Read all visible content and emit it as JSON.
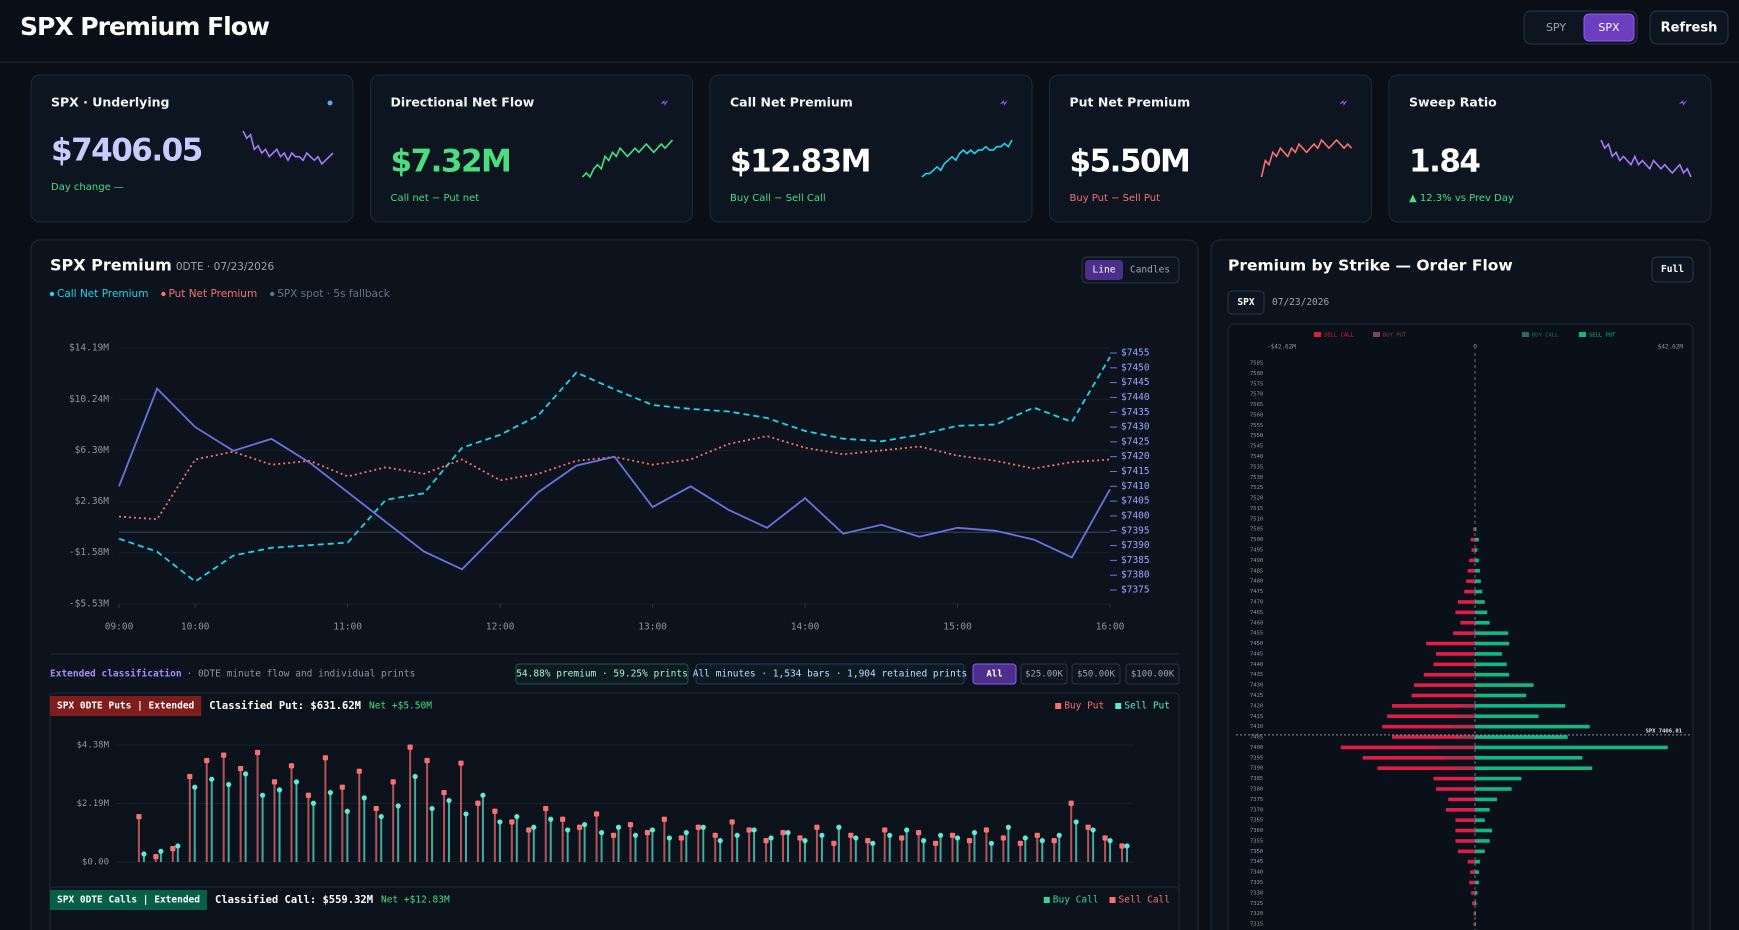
{
  "header": {
    "title": "SPX Premium Flow",
    "symbols": [
      "SPY",
      "SPX"
    ],
    "active_symbol": 1,
    "refresh": "Refresh"
  },
  "cards": [
    {
      "title": "SPX · Underlying",
      "value": "$7406.05",
      "note": "Day change —",
      "value_color": "#c9cbff",
      "note_color": "#4ade80",
      "spark_color": "#a37cf0",
      "spark": [
        12,
        10,
        11,
        7,
        8,
        6,
        7,
        5,
        6,
        7,
        5,
        6,
        4,
        6,
        5,
        5,
        4,
        6,
        5,
        4,
        5,
        3,
        4,
        5,
        6
      ]
    },
    {
      "title": "Directional Net Flow",
      "value": "$7.32M",
      "note": "Call net − Put net",
      "value_color": "#4ade80",
      "note_color": "#4ade80",
      "spark_color": "#4ade80",
      "spark": [
        2,
        3,
        2,
        4,
        5,
        4,
        7,
        6,
        8,
        7,
        9,
        8,
        7,
        8,
        9,
        8,
        9,
        10,
        9,
        8,
        9,
        10,
        9,
        10,
        11
      ]
    },
    {
      "title": "Call Net Premium",
      "value": "$12.83M",
      "note": "Buy Call − Sell Call",
      "value_color": "#ffffff",
      "note_color": "#4ade80",
      "spark_color": "#22d3ee",
      "spark": [
        1,
        2,
        2,
        3,
        4,
        3,
        5,
        6,
        7,
        6,
        8,
        9,
        8,
        9,
        8,
        9,
        9,
        10,
        9,
        9,
        10,
        10,
        11,
        10,
        12
      ]
    },
    {
      "title": "Put Net Premium",
      "value": "$5.50M",
      "note": "Buy Put − Sell Put",
      "value_color": "#ffffff",
      "note_color": "#f87171",
      "spark_color": "#f87171",
      "spark": [
        2,
        6,
        5,
        8,
        7,
        9,
        8,
        7,
        9,
        8,
        10,
        9,
        8,
        9,
        10,
        9,
        11,
        10,
        9,
        10,
        11,
        10,
        9,
        10,
        9
      ]
    },
    {
      "title": "Sweep Ratio",
      "value": "1.84",
      "note": "▲ 12.3% vs Prev Day",
      "value_color": "#ffffff",
      "note_color": "#4ade80",
      "spark_color": "#a37cf0",
      "spark": [
        11,
        9,
        10,
        7,
        8,
        6,
        7,
        6,
        5,
        7,
        5,
        6,
        5,
        4,
        6,
        5,
        4,
        5,
        4,
        3,
        4,
        5,
        3,
        4,
        2
      ]
    }
  ],
  "main_chart": {
    "type": "line",
    "title": "SPX Premium",
    "subtitle": "0DTE · 07/23/2026",
    "modes": [
      "Line",
      "Candles"
    ],
    "active_mode": 0,
    "x": [
      9.5,
      9.75,
      10,
      10.25,
      10.5,
      10.75,
      11,
      11.25,
      11.5,
      11.75,
      12,
      12.25,
      12.5,
      12.75,
      13,
      13.25,
      13.5,
      13.75,
      14,
      14.25,
      14.5,
      14.75,
      15,
      15.25,
      15.5,
      15.75,
      16
    ],
    "xlim": [
      9.5,
      16
    ],
    "xticks": [
      {
        "value": 9.5,
        "label": "09:00"
      },
      {
        "value": 10,
        "label": "10:00"
      },
      {
        "value": 11,
        "label": "11:00"
      },
      {
        "value": 12,
        "label": "12:00"
      },
      {
        "value": 13,
        "label": "13:00"
      },
      {
        "value": 14,
        "label": "14:00"
      },
      {
        "value": 15,
        "label": "15:00"
      },
      {
        "value": 16,
        "label": "16:00"
      }
    ],
    "ylim": [
      -5.53,
      14.19
    ],
    "yticks": [
      {
        "value": 14.19,
        "label": "$14.19M"
      },
      {
        "value": 10.24,
        "label": "$10.24M"
      },
      {
        "value": 6.3,
        "label": "$6.30M"
      },
      {
        "value": 2.36,
        "label": "$2.36M"
      },
      {
        "value": -1.58,
        "label": "-$1.58M"
      },
      {
        "value": -5.53,
        "label": "-$5.53M"
      }
    ],
    "y2lim": [
      7375,
      7455
    ],
    "y2ticks": [
      {
        "value": 7455,
        "label": "$7455"
      },
      {
        "value": 7450,
        "label": "$7450"
      },
      {
        "value": 7445,
        "label": "$7445"
      },
      {
        "value": 7440,
        "label": "$7440"
      },
      {
        "value": 7435,
        "label": "$7435"
      },
      {
        "value": 7430,
        "label": "$7430"
      },
      {
        "value": 7425,
        "label": "$7425"
      },
      {
        "value": 7420,
        "label": "$7420"
      },
      {
        "value": 7415,
        "label": "$7415"
      },
      {
        "value": 7410,
        "label": "$7410"
      },
      {
        "value": 7405,
        "label": "$7405"
      },
      {
        "value": 7400,
        "label": "$7400"
      },
      {
        "value": 7395,
        "label": "$7395"
      },
      {
        "value": 7390,
        "label": "$7390"
      },
      {
        "value": 7385,
        "label": "$7385"
      },
      {
        "value": 7380,
        "label": "$7380"
      },
      {
        "value": 7375,
        "label": "$7375"
      }
    ],
    "grid": true,
    "series": [
      {
        "name": "Call Net Premium",
        "color": "#22d3ee",
        "style": "dashed",
        "values": [
          -0.5,
          -1.5,
          -3.8,
          -1.8,
          -1.2,
          -1.0,
          -0.8,
          2.5,
          3.0,
          6.5,
          7.5,
          9.0,
          12.3,
          11.0,
          9.8,
          9.5,
          9.3,
          8.8,
          7.8,
          7.2,
          7.0,
          7.5,
          8.2,
          8.3,
          9.6,
          8.5,
          13.5
        ]
      },
      {
        "name": "Put Net Premium",
        "color": "#f87171",
        "style": "dotted",
        "values": [
          1.2,
          1.0,
          5.6,
          6.2,
          5.2,
          5.5,
          4.3,
          5.0,
          4.5,
          5.6,
          4.0,
          4.5,
          5.5,
          5.8,
          5.2,
          5.6,
          6.8,
          7.4,
          6.5,
          6.0,
          6.3,
          6.6,
          5.9,
          5.5,
          4.9,
          5.4,
          5.6
        ]
      },
      {
        "name": "SPX spot · 5s fallback",
        "color": "#6b72e0",
        "legend_color": "#64748b",
        "style": "solid",
        "axis": "y2",
        "values": [
          7410,
          7443,
          7430,
          7422,
          7426,
          7418,
          7408,
          7398,
          7388,
          7382,
          7395,
          7408,
          7417,
          7420,
          7403,
          7410,
          7402,
          7396,
          7406,
          7394,
          7397,
          7393,
          7396,
          7395,
          7392,
          7386,
          7409
        ]
      }
    ]
  },
  "extended": {
    "title": "Extended classification",
    "subtitle": "· 0DTE minute flow and individual prints",
    "stats": [
      "54.88% premium · 59.25% prints",
      "All minutes · 1,534 bars · 1,904 retained prints"
    ],
    "filters": [
      "All",
      "$25.00K",
      "$50.00K",
      "$100.00K"
    ],
    "active_filter": 0
  },
  "puts_chart": {
    "type": "bar",
    "label": "SPX 0DTE Puts | Extended",
    "summary": "Classified Put: $631.62M",
    "net": "Net +$5.50M",
    "ylim": [
      0,
      4.38
    ],
    "yticks": [
      {
        "value": 4.38,
        "label": "$4.38M"
      },
      {
        "value": 2.19,
        "label": "$2.19M"
      },
      {
        "value": 0,
        "label": "$0.00"
      }
    ],
    "series": [
      {
        "name": "Buy Put",
        "color": "#f87171",
        "values": [
          0.0,
          1.7,
          0.2,
          0.5,
          3.2,
          3.8,
          4.0,
          3.5,
          4.1,
          3.0,
          3.6,
          2.5,
          3.9,
          2.8,
          3.4,
          2.0,
          3.0,
          4.3,
          3.8,
          2.6,
          3.7,
          2.2,
          1.9,
          1.5,
          1.2,
          2.0,
          1.6,
          1.3,
          1.8,
          1.0,
          1.4,
          1.1,
          1.6,
          0.9,
          1.3,
          1.0,
          1.5,
          1.2,
          0.8,
          1.1,
          0.9,
          1.3,
          0.7,
          1.0,
          0.8,
          1.2,
          0.9,
          1.1,
          0.7,
          1.0,
          0.8,
          1.2,
          0.9,
          0.7,
          1.0,
          0.8,
          2.2,
          1.3,
          0.9,
          0.6
        ]
      },
      {
        "name": "Sell Put",
        "color": "#5eead4",
        "values": [
          0.0,
          0.3,
          0.4,
          0.6,
          2.8,
          3.1,
          2.9,
          3.3,
          2.5,
          2.7,
          3.0,
          2.2,
          2.6,
          1.9,
          2.4,
          1.7,
          2.1,
          3.2,
          2.0,
          2.3,
          1.8,
          2.5,
          1.5,
          1.7,
          1.3,
          1.6,
          1.2,
          1.4,
          1.1,
          1.3,
          1.0,
          1.2,
          0.9,
          1.1,
          1.3,
          0.8,
          1.0,
          1.2,
          0.9,
          1.1,
          0.8,
          1.0,
          1.3,
          0.9,
          0.7,
          1.0,
          1.2,
          0.8,
          1.0,
          0.9,
          1.1,
          0.7,
          1.3,
          0.9,
          0.8,
          1.0,
          1.5,
          1.2,
          0.8,
          0.6
        ]
      }
    ]
  },
  "calls_chart": {
    "type": "bar",
    "label": "SPX 0DTE Calls | Extended",
    "summary": "Classified Call: $559.32M",
    "net": "Net +$12.83M",
    "series": [
      {
        "name": "Buy Call",
        "color": "#34d399"
      },
      {
        "name": "Sell Call",
        "color": "#f87171"
      }
    ]
  },
  "strike_chart": {
    "type": "bar",
    "orientation": "horizontal",
    "title": "Premium by Strike — Order Flow",
    "button": "Full",
    "symbol": "SPX",
    "date": "07/23/2026",
    "categories": [
      7585,
      7580,
      7575,
      7570,
      7565,
      7560,
      7555,
      7550,
      7545,
      7540,
      7535,
      7530,
      7525,
      7520,
      7515,
      7510,
      7505,
      7500,
      7495,
      7490,
      7485,
      7480,
      7475,
      7470,
      7465,
      7460,
      7455,
      7450,
      7445,
      7440,
      7435,
      7430,
      7425,
      7420,
      7415,
      7410,
      7405,
      7400,
      7395,
      7390,
      7385,
      7380,
      7375,
      7370,
      7365,
      7360,
      7355,
      7350,
      7345,
      7340,
      7335,
      7330,
      7325,
      7320,
      7315
    ],
    "xlim": [
      -42.62,
      42.62
    ],
    "xticks": [
      {
        "value": -42.62,
        "label": "-$42.62M"
      },
      0,
      {
        "value": 42.62,
        "label": "$42.62M"
      }
    ],
    "spot": 7406.01,
    "spot_label": "SPX 7406.01",
    "series": [
      {
        "name": "SELL CALL",
        "color": "#e11d48",
        "values": [
          0,
          0,
          0,
          0,
          0,
          0,
          0,
          0,
          0,
          0,
          0,
          0,
          0,
          0,
          0,
          0,
          -0.4,
          -0.9,
          -0.7,
          -1.2,
          -1.5,
          -1.8,
          -2.2,
          -3.5,
          -4.0,
          -3.0,
          -4.5,
          -10.0,
          -8.0,
          -8.5,
          -10.5,
          -12.5,
          -13.0,
          -17.0,
          -18.0,
          -19.0,
          -17.0,
          -27.5,
          -23.0,
          -20.0,
          -8.5,
          -8.0,
          -5.5,
          -6.0,
          -4.0,
          -4.0,
          -4.0,
          -3.5,
          -1.5,
          -1.0,
          -1.2,
          -0.8,
          -0.6,
          -0.3,
          -0.3
        ]
      },
      {
        "name": "BUY PUT",
        "color": "#7a4652",
        "values": [
          0,
          0,
          0,
          0,
          0,
          0,
          0,
          0,
          0,
          0,
          0,
          0,
          0,
          0,
          0,
          0,
          0,
          0,
          0,
          0,
          0,
          0,
          0,
          0,
          0,
          0,
          0,
          0,
          0,
          0,
          0,
          0,
          0,
          -3,
          -4,
          -5,
          -3,
          -8,
          -6,
          -4,
          0,
          0,
          0,
          0,
          0,
          0,
          0,
          0,
          0,
          0,
          0,
          0,
          0,
          0,
          0
        ]
      },
      {
        "name": "BUY CALL",
        "color": "#2f6b58",
        "values": [
          0,
          0,
          0,
          0,
          0,
          0,
          0,
          0,
          0,
          0,
          0,
          0,
          0,
          0,
          0,
          0,
          0,
          0,
          0,
          0,
          0,
          0,
          0,
          0,
          0,
          0,
          0,
          0,
          0,
          0,
          0,
          0,
          0,
          3,
          4,
          6,
          4,
          9,
          5,
          3,
          0,
          0,
          0,
          0,
          0,
          0,
          0,
          0,
          0,
          0,
          0,
          0,
          0,
          0,
          0
        ]
      },
      {
        "name": "SELL PUT",
        "color": "#10b981",
        "values": [
          0,
          0,
          0,
          0,
          0,
          0,
          0,
          0,
          0,
          0,
          0,
          0,
          0,
          0,
          0,
          0,
          0.3,
          0.8,
          0.5,
          0.8,
          1.0,
          1.2,
          1.5,
          2.0,
          2.5,
          3.0,
          6.8,
          7.0,
          5.5,
          6.5,
          7.0,
          12.0,
          10.5,
          18.5,
          13.0,
          23.5,
          19.0,
          39.5,
          22.0,
          24.0,
          9.5,
          7.5,
          4.5,
          3.0,
          2.0,
          3.5,
          3.0,
          2.0,
          1.0,
          0.8,
          0.8,
          0.5,
          0.3,
          0.2,
          0.2
        ]
      }
    ]
  }
}
